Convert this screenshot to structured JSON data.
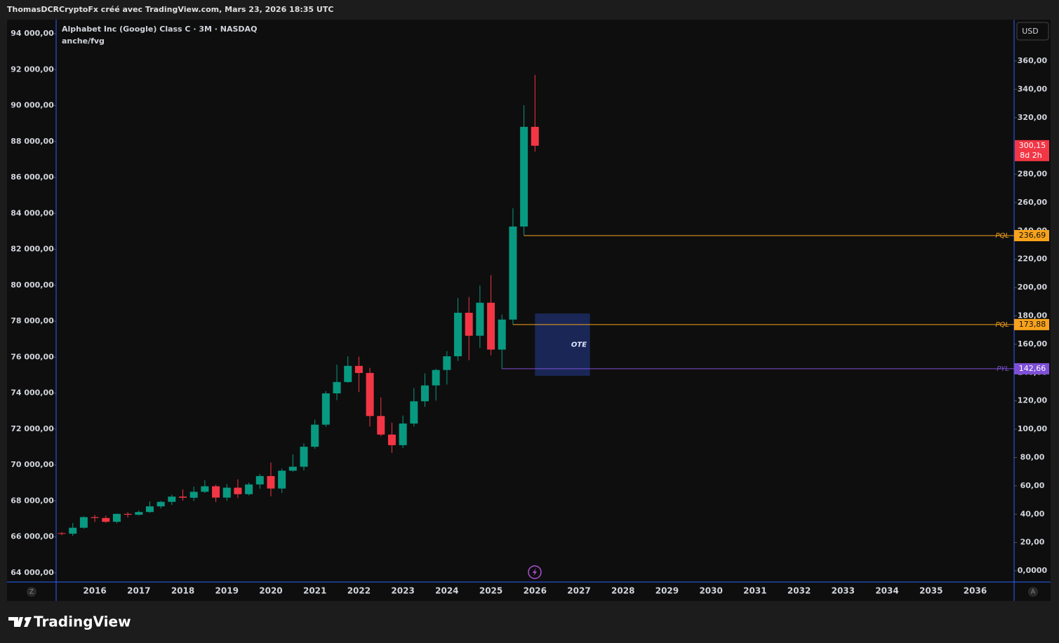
{
  "header": {
    "author": "ThomasDCRCryptoFx créé avec TradingView.com, Mars 23, 2026 18:35 UTC",
    "brand": "TradingView",
    "currency": "USD",
    "left_corner": "Z",
    "right_corner": "A"
  },
  "chart_data": {
    "type": "candlestick",
    "title": "Alphabet Inc (Google) Class C · 3M · NASDAQ",
    "subtitle": "anche/fvg",
    "categories": [
      null,
      null,
      null,
      "2016",
      null,
      null,
      null,
      "2017",
      null,
      null,
      null,
      "2018",
      null,
      null,
      null,
      "2019",
      null,
      null,
      null,
      "2020",
      null,
      null,
      null,
      "2021",
      null,
      null,
      null,
      "2022",
      null,
      null,
      null,
      "2023",
      null,
      null,
      null,
      "2024",
      null,
      null,
      null,
      "2025",
      null,
      null,
      null,
      "2026",
      null,
      null,
      null,
      "2027",
      null,
      null,
      null,
      "2028",
      null,
      null,
      null,
      "2029",
      null,
      null,
      null,
      "2030",
      null,
      null,
      null,
      "2031",
      null,
      null,
      null,
      "2032",
      null,
      null,
      null,
      "2033",
      null,
      null,
      null,
      "2034",
      null,
      null,
      null,
      "2035",
      null,
      null,
      null,
      "2036",
      null,
      null,
      null
    ],
    "open": [
      26.6,
      26.2,
      30.4,
      37.9,
      37.3,
      34.6,
      40.2,
      39.6,
      41.5,
      45.5,
      48.7,
      52.4,
      51.6,
      55.8,
      59.7,
      51.7,
      58.7,
      54.1,
      61.0,
      66.9,
      58.1,
      70.7,
      73.5,
      87.6,
      103.2,
      125.3,
      133.3,
      144.7,
      139.7,
      109.3,
      96.2,
      88.7,
      104.0,
      119.7,
      130.9,
      141.8,
      151.5,
      182.2,
      166.0,
      189.3,
      156.2,
      177.4,
      243.1,
      313.5,
      null,
      null,
      null,
      null,
      null,
      null,
      null,
      null,
      null,
      null,
      null,
      null,
      null,
      null,
      null,
      null,
      null,
      null,
      null,
      null,
      null,
      null,
      null,
      null,
      null,
      null,
      null,
      null,
      null,
      null,
      null,
      null,
      null,
      null,
      null,
      null,
      null,
      null,
      null,
      null,
      null,
      null,
      null
    ],
    "high": [
      27.4,
      33.7,
      38.5,
      39.5,
      39.0,
      40.4,
      41.5,
      42.5,
      49.0,
      49.4,
      53.8,
      57.5,
      59.4,
      64.2,
      60.8,
      61.3,
      64.6,
      62.3,
      68.3,
      76.5,
      72.2,
      82.2,
      90.0,
      106.8,
      126.9,
      145.5,
      151.5,
      151.2,
      143.3,
      122.4,
      104.6,
      109.6,
      129.0,
      139.4,
      142.7,
      155.2,
      192.7,
      193.3,
      201.4,
      208.7,
      181.0,
      256.0,
      328.8,
      350.2,
      null,
      null,
      null,
      null,
      null,
      null,
      null,
      null,
      null,
      null,
      null,
      null,
      null,
      null,
      null,
      null,
      null,
      null,
      null,
      null,
      null,
      null,
      null,
      null,
      null,
      null,
      null,
      null,
      null,
      null,
      null,
      null,
      null,
      null,
      null,
      null,
      null,
      null,
      null,
      null,
      null,
      null,
      null
    ],
    "low": [
      25.1,
      24.6,
      29.8,
      34.5,
      33.8,
      33.5,
      37.6,
      39.0,
      41.0,
      44.0,
      46.4,
      49.6,
      49.3,
      55.0,
      48.6,
      49.3,
      51.4,
      53.2,
      57.9,
      52.6,
      55.0,
      70.0,
      70.8,
      86.2,
      101.7,
      120.5,
      132.8,
      126.2,
      101.9,
      95.1,
      83.3,
      86.6,
      101.9,
      115.8,
      120.2,
      131.5,
      148.2,
      148.7,
      157.4,
      152.2,
      142.66,
      173.88,
      236.69,
      296.0,
      null,
      null,
      null,
      null,
      null,
      null,
      null,
      null,
      null,
      null,
      null,
      null,
      null,
      null,
      null,
      null,
      null,
      null,
      null,
      null,
      null,
      null,
      null,
      null,
      null,
      null,
      null,
      null,
      null,
      null,
      null,
      null,
      null,
      null,
      null,
      null,
      null,
      null,
      null,
      null,
      null,
      null,
      null
    ],
    "close": [
      26.2,
      30.4,
      37.9,
      37.3,
      34.6,
      40.2,
      39.6,
      41.5,
      45.5,
      48.7,
      52.4,
      51.6,
      55.8,
      59.7,
      51.7,
      58.7,
      54.1,
      61.0,
      66.9,
      58.1,
      70.7,
      73.5,
      87.6,
      103.2,
      125.3,
      133.3,
      144.7,
      139.7,
      109.3,
      96.2,
      88.7,
      104.0,
      119.7,
      130.9,
      141.8,
      151.5,
      182.2,
      166.0,
      189.3,
      156.2,
      177.4,
      243.1,
      313.5,
      300.15,
      null,
      null,
      null,
      null,
      null,
      null,
      null,
      null,
      null,
      null,
      null,
      null,
      null,
      null,
      null,
      null,
      null,
      null,
      null,
      null,
      null,
      null,
      null,
      null,
      null,
      null,
      null,
      null,
      null,
      null,
      null,
      null,
      null,
      null,
      null,
      null,
      null,
      null,
      null,
      null,
      null,
      null,
      null
    ],
    "up_color": "#089981",
    "down_color": "#f23645",
    "ylim": [
      -7.9,
      389.2
    ],
    "yticks": [
      {
        "value": 0,
        "label": "0,0000"
      },
      {
        "value": 20,
        "label": "20,00"
      },
      {
        "value": 40,
        "label": "40,00"
      },
      {
        "value": 60,
        "label": "60,00"
      },
      {
        "value": 80,
        "label": "80,00"
      },
      {
        "value": 100,
        "label": "100,00"
      },
      {
        "value": 120,
        "label": "120,00"
      },
      {
        "value": 140,
        "label": "140,00"
      },
      {
        "value": 160,
        "label": "160,00"
      },
      {
        "value": 180,
        "label": "180,00"
      },
      {
        "value": 200,
        "label": "200,00"
      },
      {
        "value": 220,
        "label": "220,00"
      },
      {
        "value": 240,
        "label": "240,00"
      },
      {
        "value": 260,
        "label": "260,00"
      },
      {
        "value": 280,
        "label": "280,00"
      },
      {
        "value": 300,
        "label": "300,00"
      },
      {
        "value": 320,
        "label": "320,00"
      },
      {
        "value": 340,
        "label": "340,00"
      },
      {
        "value": 360,
        "label": "360,00"
      }
    ],
    "y2lim": [
      63493,
      94780
    ],
    "y2ticks": [
      {
        "value": 64000,
        "label": "64 000,00"
      },
      {
        "value": 66000,
        "label": "66 000,00"
      },
      {
        "value": 68000,
        "label": "68 000,00"
      },
      {
        "value": 70000,
        "label": "70 000,00"
      },
      {
        "value": 72000,
        "label": "72 000,00"
      },
      {
        "value": 74000,
        "label": "74 000,00"
      },
      {
        "value": 76000,
        "label": "76 000,00"
      },
      {
        "value": 78000,
        "label": "78 000,00"
      },
      {
        "value": 80000,
        "label": "80 000,00"
      },
      {
        "value": 82000,
        "label": "82 000,00"
      },
      {
        "value": 84000,
        "label": "84 000,00"
      },
      {
        "value": 86000,
        "label": "86 000,00"
      },
      {
        "value": 88000,
        "label": "88 000,00"
      },
      {
        "value": 90000,
        "label": "90 000,00"
      },
      {
        "value": 92000,
        "label": "92 000,00"
      },
      {
        "value": 94000,
        "label": "94 000,00"
      }
    ],
    "levels": [
      {
        "name": "PQL",
        "value": 236.69,
        "value_label": "236,69",
        "color": "#f7a21b"
      },
      {
        "name": "PQL",
        "value": 173.88,
        "value_label": "173,88",
        "color": "#f7a21b"
      },
      {
        "name": "PYL",
        "value": 142.66,
        "value_label": "142,66",
        "color": "#7e4fd6"
      }
    ],
    "zone": {
      "label": "OTE",
      "top": 181.7,
      "bottom": 137.7,
      "color": "#1c2a5e"
    },
    "last": {
      "value": 300.15,
      "label": "300,15",
      "countdown": "8d 2h"
    }
  }
}
